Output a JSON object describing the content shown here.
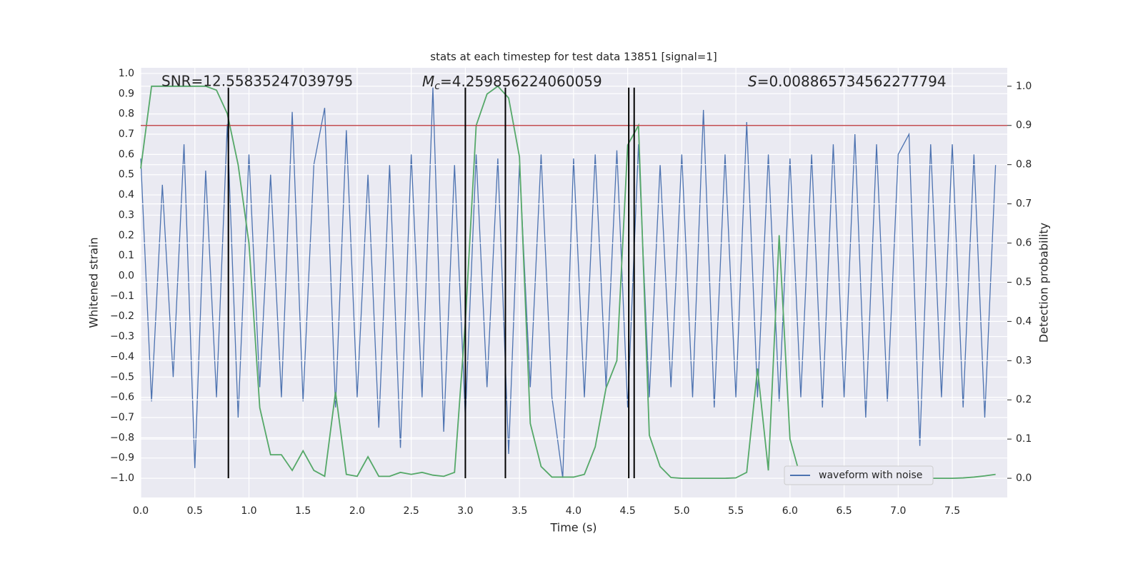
{
  "chart_data": {
    "type": "line",
    "title": "stats at each timestep for test data 13851 [signal=1]",
    "xlabel": "Time (s)",
    "ylabel": "Whitened strain",
    "y2label": "Detection probability",
    "annotations": {
      "snr": "SNR=12.55835247039795",
      "mc": {
        "symbol": "M",
        "subscript": "c",
        "text": "=4.259856224060059"
      },
      "s": {
        "symbol": "S",
        "text": "=0.008865734562277794"
      }
    },
    "x": [
      0.0,
      0.1,
      0.2,
      0.3,
      0.4,
      0.5,
      0.6,
      0.7,
      0.8,
      0.9,
      1.0,
      1.1,
      1.2,
      1.3,
      1.4,
      1.5,
      1.6,
      1.7,
      1.8,
      1.9,
      2.0,
      2.1,
      2.2,
      2.3,
      2.4,
      2.5,
      2.6,
      2.7,
      2.8,
      2.9,
      3.0,
      3.1,
      3.2,
      3.3,
      3.4,
      3.5,
      3.6,
      3.7,
      3.8,
      3.9,
      4.0,
      4.1,
      4.2,
      4.3,
      4.4,
      4.5,
      4.6,
      4.7,
      4.8,
      4.9,
      5.0,
      5.1,
      5.2,
      5.3,
      5.4,
      5.5,
      5.6,
      5.7,
      5.8,
      5.9,
      6.0,
      6.1,
      6.2,
      6.3,
      6.4,
      6.5,
      6.6,
      6.7,
      6.8,
      6.9,
      7.0,
      7.1,
      7.2,
      7.3,
      7.4,
      7.5,
      7.6,
      7.7,
      7.8,
      7.9
    ],
    "series": [
      {
        "name": "waveform with noise",
        "color": "#4c72b0",
        "values": [
          0.58,
          -0.62,
          0.45,
          -0.5,
          0.65,
          -0.95,
          0.52,
          -0.6,
          0.75,
          -0.7,
          0.6,
          -0.55,
          0.5,
          -0.6,
          0.81,
          -0.62,
          0.55,
          0.83,
          -0.65,
          0.72,
          -0.6,
          0.5,
          -0.75,
          0.55,
          -0.85,
          0.6,
          -0.6,
          0.93,
          -0.77,
          0.55,
          -0.7,
          0.6,
          -0.55,
          0.58,
          -0.88,
          0.55,
          -0.55,
          0.6,
          -0.6,
          -1.0,
          0.58,
          -0.6,
          0.6,
          -0.55,
          0.62,
          -0.65,
          0.65,
          -0.6,
          0.55,
          -0.55,
          0.6,
          -0.6,
          0.82,
          -0.65,
          0.6,
          -0.6,
          0.76,
          -0.6,
          0.6,
          -0.62,
          0.58,
          -0.6,
          0.6,
          -0.65,
          0.65,
          -0.6,
          0.7,
          -0.7,
          0.65,
          -0.62,
          0.6,
          0.7,
          -0.84,
          0.65,
          -0.6,
          0.65,
          -0.65,
          0.6,
          -0.7,
          0.55
        ]
      },
      {
        "color": "#55a868",
        "axis": "y2",
        "values": [
          0.79,
          1.0,
          1.0,
          1.0,
          1.0,
          1.0,
          1.0,
          0.99,
          0.93,
          0.8,
          0.6,
          0.18,
          0.06,
          0.06,
          0.02,
          0.07,
          0.02,
          0.005,
          0.22,
          0.01,
          0.005,
          0.055,
          0.005,
          0.005,
          0.015,
          0.01,
          0.015,
          0.008,
          0.005,
          0.015,
          0.4,
          0.9,
          0.98,
          1.0,
          0.97,
          0.82,
          0.14,
          0.03,
          0.003,
          0.003,
          0.003,
          0.01,
          0.08,
          0.23,
          0.3,
          0.85,
          0.9,
          0.11,
          0.03,
          0.002,
          0.0,
          0.0,
          0.0,
          0.0,
          0.0,
          0.001,
          0.015,
          0.28,
          0.02,
          0.62,
          0.1,
          0.0,
          0.002,
          0.0,
          0.0,
          0.001,
          0.001,
          0.001,
          0.001,
          0.0,
          0.0,
          0.0,
          0.0,
          0.0,
          0.0,
          0.0,
          0.001,
          0.003,
          0.006,
          0.01
        ]
      }
    ],
    "threshold": {
      "value": 0.9,
      "axis": "y2",
      "color": "#c44e52"
    },
    "vlines": {
      "x": [
        0.81,
        3.0,
        3.37,
        4.51,
        4.56
      ],
      "ymin": -1.0,
      "ymax": 0.93,
      "color": "#000000"
    },
    "xlim": [
      0,
      8.008
    ],
    "ylim": [
      -1.095,
      1.028
    ],
    "y2lim": [
      -0.049,
      1.047
    ],
    "xticks": [
      {
        "value": 0,
        "label": "0.0"
      },
      0.5,
      {
        "value": 1,
        "label": "1.0"
      },
      1.5,
      {
        "value": 2,
        "label": "2.0"
      },
      2.5,
      {
        "value": 3,
        "label": "3.0"
      },
      3.5,
      {
        "value": 4,
        "label": "4.0"
      },
      4.5,
      {
        "value": 5,
        "label": "5.0"
      },
      5.5,
      {
        "value": 6,
        "label": "6.0"
      },
      6.5,
      {
        "value": 7,
        "label": "7.0"
      },
      7.5
    ],
    "yticks": [
      {
        "value": -1,
        "label": "−1.0"
      },
      {
        "value": -0.9,
        "label": "−0.9"
      },
      {
        "value": -0.8,
        "label": "−0.8"
      },
      {
        "value": -0.7,
        "label": "−0.7"
      },
      {
        "value": -0.6,
        "label": "−0.6"
      },
      {
        "value": -0.5,
        "label": "−0.5"
      },
      {
        "value": -0.4,
        "label": "−0.4"
      },
      {
        "value": -0.3,
        "label": "−0.3"
      },
      {
        "value": -0.2,
        "label": "−0.2"
      },
      {
        "value": -0.1,
        "label": "−0.1"
      },
      {
        "value": 0,
        "label": "0.0"
      },
      0.1,
      0.2,
      0.3,
      0.4,
      0.5,
      0.6,
      0.7,
      0.8,
      0.9,
      {
        "value": 1,
        "label": "1.0"
      }
    ],
    "y2ticks": [
      {
        "value": 0,
        "label": "0.0"
      },
      0.1,
      0.2,
      0.3,
      0.4,
      0.5,
      0.6,
      0.7,
      0.8,
      0.9,
      {
        "value": 1,
        "label": "1.0"
      }
    ],
    "grid": true,
    "legend": "lower right"
  }
}
